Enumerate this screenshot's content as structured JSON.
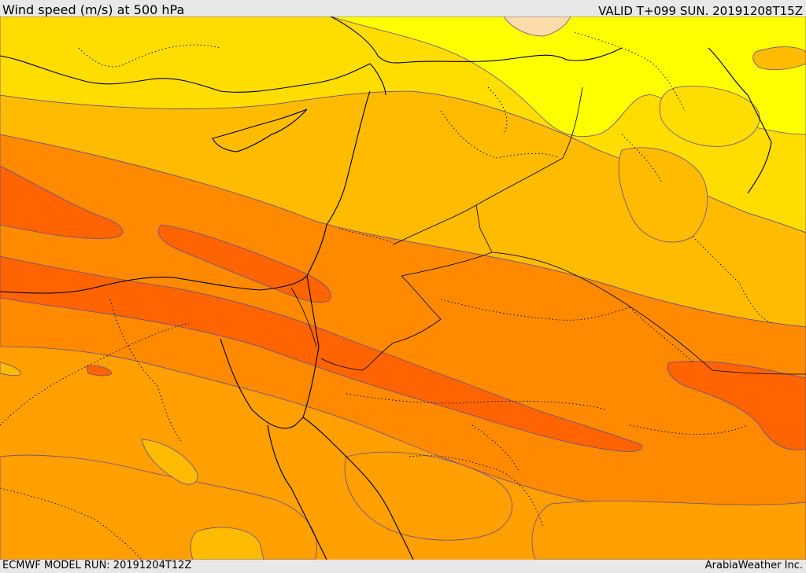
{
  "header": {
    "title": "Wind speed (m/s) at 500 hPa",
    "valid": "VALID T+099 SUN. 20191208T15Z"
  },
  "footer": {
    "model_run": "ECMWF MODEL RUN: 20191204T12Z",
    "credit": "ArabiaWeather Inc."
  },
  "colors": {
    "band_yellow": "#ffff00",
    "band_gold": "#ffdd00",
    "band_amber": "#ffbb00",
    "band_orange_light": "#ff9f00",
    "band_orange": "#ff8a00",
    "band_orange_dark": "#ff6400",
    "band_peach": "#fddcaa",
    "contour_line": "#6b4c8a",
    "coastline": "#000000"
  }
}
